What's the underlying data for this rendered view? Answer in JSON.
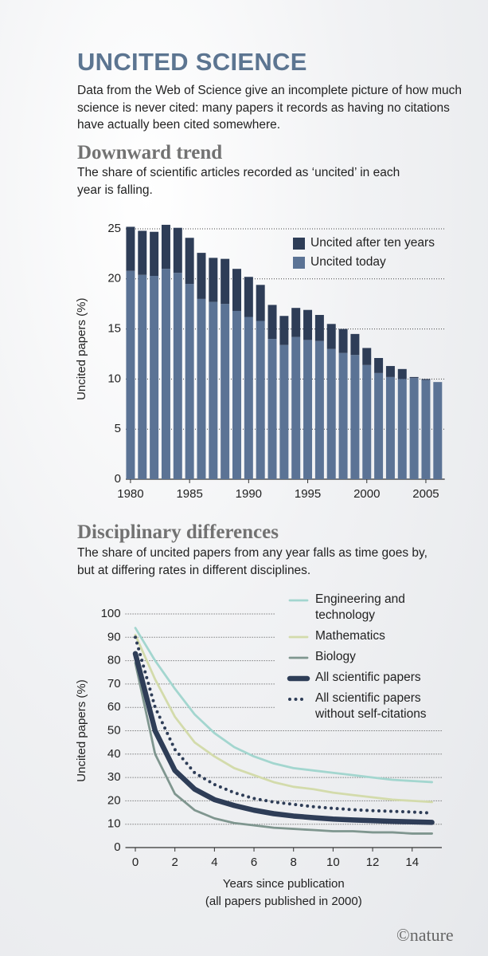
{
  "title": "UNCITED SCIENCE",
  "intro": "Data from the Web of Science give an incomplete picture of how much science is never cited: many papers it records as having no citations have actually been cited somewhere.",
  "credit": "©nature",
  "chart_data": [
    {
      "type": "bar",
      "stacked": true,
      "title": "Downward trend",
      "subtitle": "The share of scientific articles recorded as ‘uncited’ in each year is falling.",
      "ylabel": "Uncited papers (%)",
      "x": [
        1980,
        1981,
        1982,
        1983,
        1984,
        1985,
        1986,
        1987,
        1988,
        1989,
        1990,
        1991,
        1992,
        1993,
        1994,
        1995,
        1996,
        1997,
        1998,
        1999,
        2000,
        2001,
        2002,
        2003,
        2004,
        2005,
        2006
      ],
      "xlim": [
        1979.6,
        2006.6
      ],
      "xticks": [
        1980,
        1985,
        1990,
        1995,
        2000,
        2005
      ],
      "ylim": [
        0,
        26
      ],
      "yticks": [
        0,
        5,
        10,
        15,
        20,
        25
      ],
      "grid": true,
      "legend": "upper right",
      "series": [
        {
          "name": "Uncited today",
          "color": "#5b7395",
          "values": [
            20.8,
            20.4,
            20.3,
            21.0,
            20.6,
            19.5,
            18.0,
            17.7,
            17.5,
            16.8,
            16.2,
            15.8,
            14.0,
            13.4,
            14.2,
            13.9,
            13.8,
            13.0,
            12.6,
            12.4,
            11.4,
            10.6,
            10.2,
            10.0,
            10.1,
            9.9,
            9.7
          ]
        },
        {
          "name": "Uncited after ten years",
          "color": "#2e3d57",
          "values": [
            4.4,
            4.4,
            4.4,
            4.4,
            4.5,
            4.6,
            4.6,
            4.4,
            4.5,
            4.2,
            4.0,
            3.6,
            3.4,
            2.9,
            2.9,
            3.0,
            2.6,
            2.5,
            2.4,
            2.1,
            1.7,
            1.5,
            1.1,
            1.0,
            0.1,
            0.1,
            0
          ]
        }
      ]
    },
    {
      "type": "line",
      "title": "Disciplinary differences",
      "subtitle": "The share of uncited papers from any year falls as time goes by, but at differing rates in different disciplines.",
      "ylabel": "Uncited papers (%)",
      "xlabel": [
        "Years since publication",
        "(all papers published in 2000)"
      ],
      "x": [
        0,
        1,
        2,
        3,
        4,
        5,
        6,
        7,
        8,
        9,
        10,
        11,
        12,
        13,
        14,
        15
      ],
      "xlim": [
        -0.5,
        15.5
      ],
      "xticks": [
        0,
        2,
        4,
        6,
        8,
        10,
        12,
        14
      ],
      "ylim": [
        0,
        100
      ],
      "yticks": [
        0,
        10,
        20,
        30,
        40,
        50,
        60,
        70,
        80,
        90,
        100
      ],
      "grid": true,
      "legend": "upper right",
      "series": [
        {
          "name": "Engineering and technology",
          "color": "#a3d6cf",
          "style": "solid",
          "values": [
            94,
            80,
            68,
            57,
            49,
            43,
            39,
            36,
            34,
            33,
            32,
            31,
            30,
            29,
            28.5,
            28
          ]
        },
        {
          "name": "Mathematics",
          "color": "#d3dbab",
          "style": "solid",
          "values": [
            91,
            72,
            56,
            45,
            39,
            34,
            31,
            28,
            26,
            25,
            23.5,
            22.5,
            21.5,
            20.5,
            20,
            19.5
          ]
        },
        {
          "name": "Biology",
          "color": "#7f968f",
          "style": "solid",
          "values": [
            79,
            40,
            23,
            16,
            12.5,
            10.5,
            9.5,
            8.5,
            8,
            7.5,
            7,
            7,
            6.5,
            6.5,
            6,
            6
          ]
        },
        {
          "name": "All scientific papers",
          "color": "#2e3d57",
          "style": "thick",
          "values": [
            83,
            50,
            33,
            25,
            20.5,
            18,
            16,
            14.5,
            13.5,
            12.8,
            12.2,
            11.8,
            11.5,
            11.2,
            11,
            10.8
          ]
        },
        {
          "name": "All scientific papers without self-citations",
          "color": "#2e3d57",
          "style": "dotted",
          "values": [
            90,
            60,
            42,
            32,
            27,
            23.5,
            21,
            19.5,
            18.5,
            17.5,
            16.8,
            16.2,
            15.8,
            15.5,
            15.2,
            14.8
          ]
        }
      ]
    }
  ]
}
